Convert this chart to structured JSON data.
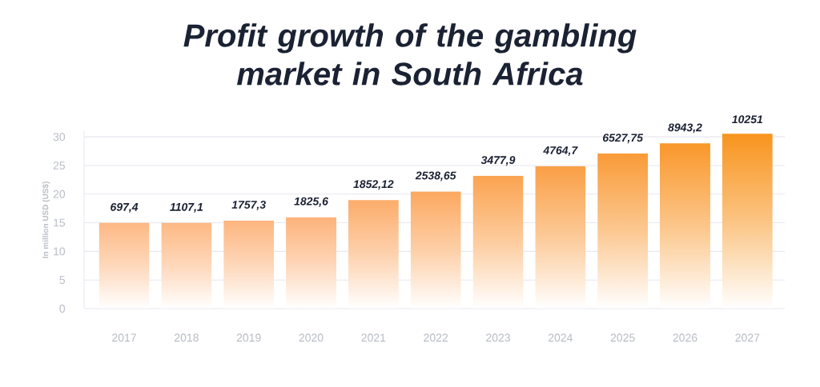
{
  "chart_data": {
    "type": "bar",
    "title": "Profit growth of the gambling market in South Africa",
    "ylabel": "In million USD (US$)",
    "categories": [
      "2017",
      "2018",
      "2019",
      "2020",
      "2021",
      "2022",
      "2023",
      "2024",
      "2025",
      "2026",
      "2027"
    ],
    "values": [
      15,
      15,
      15.4,
      16,
      19,
      20.5,
      23.2,
      24.9,
      27.1,
      28.9,
      30.6
    ],
    "annotations": [
      {
        "text": "697,4",
        "x": "2017",
        "y": 15
      },
      {
        "text": "1107,1",
        "x": "2018",
        "y": 15
      },
      {
        "text": "1757,3",
        "x": "2019",
        "y": 15.4
      },
      {
        "text": "1825,6",
        "x": "2020",
        "y": 16
      },
      {
        "text": "1852,12",
        "x": "2021",
        "y": 19
      },
      {
        "text": "2538,65",
        "x": "2022",
        "y": 20.5
      },
      {
        "text": "3477,9",
        "x": "2023",
        "y": 23.2
      },
      {
        "text": "4764,7",
        "x": "2024",
        "y": 24.9
      },
      {
        "text": "6527,75",
        "x": "2025",
        "y": 27.1
      },
      {
        "text": "8943,2",
        "x": "2026",
        "y": 28.9
      },
      {
        "text": "10251",
        "x": "2027",
        "y": 30.6
      }
    ],
    "colors": [
      "#fdb883",
      "#fdb883",
      "#fdb57e",
      "#fdb27a",
      "#fcac6a",
      "#fca85f",
      "#fba350",
      "#fa9f45",
      "#f99b38",
      "#f9972a",
      "#f8941d"
    ],
    "ylim": [
      0,
      31
    ],
    "yticks": [
      0,
      5,
      10,
      15,
      20,
      25,
      30
    ],
    "grid": "y"
  }
}
